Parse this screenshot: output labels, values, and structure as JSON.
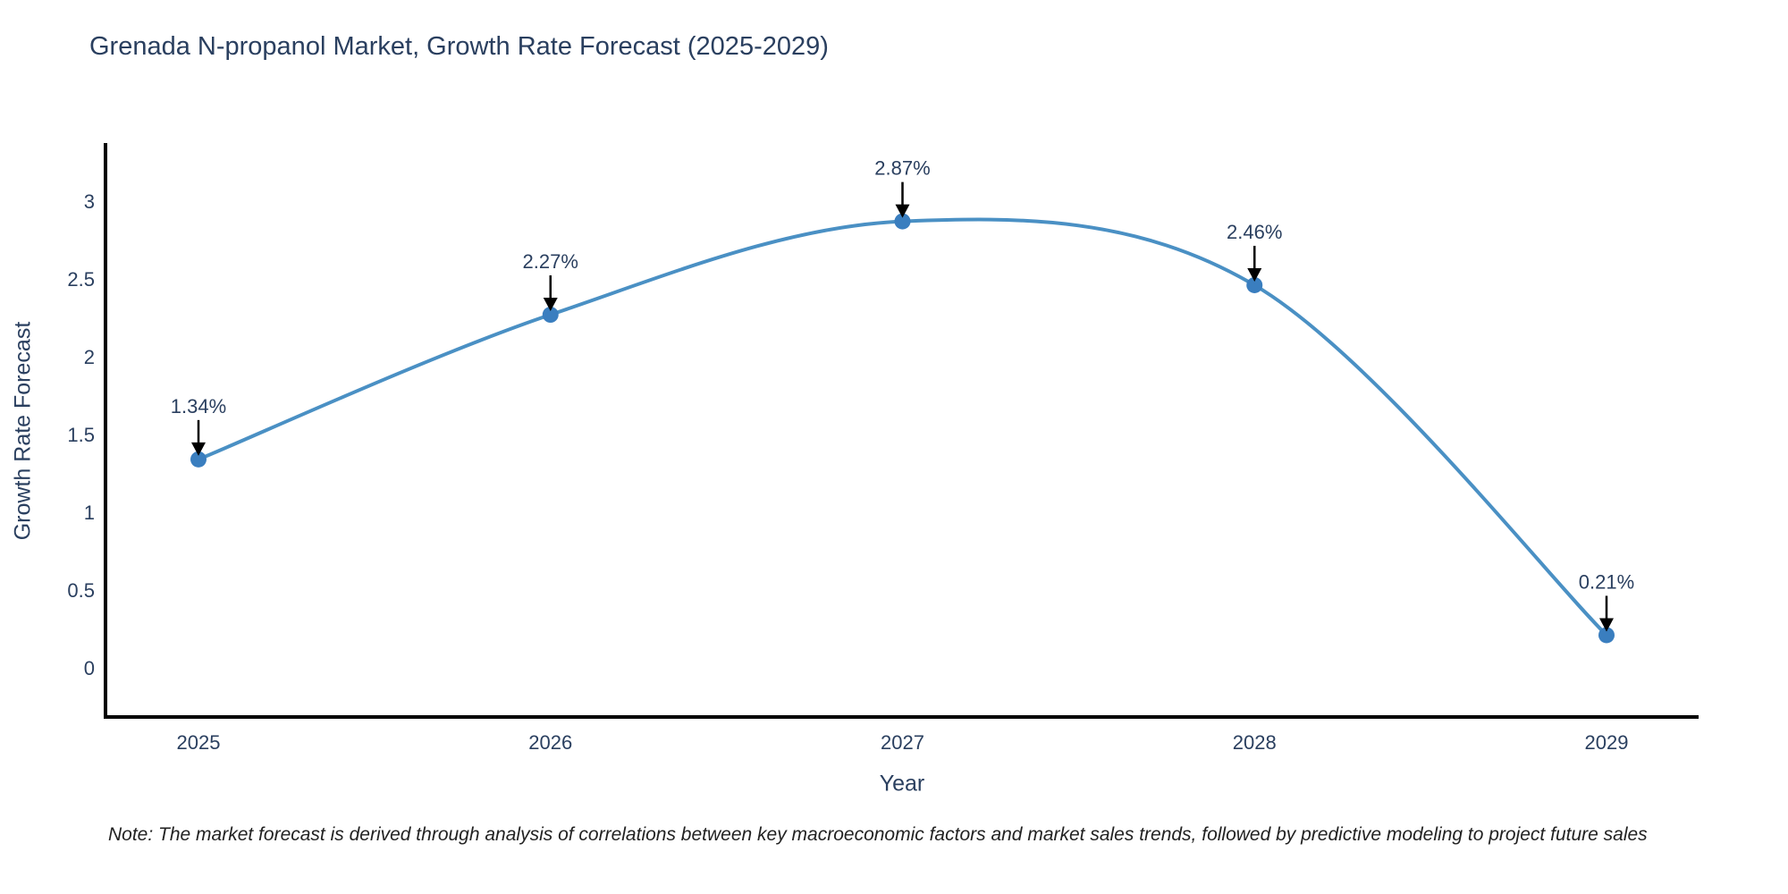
{
  "title": "Grenada N-propanol Market, Growth Rate Forecast (2025-2029)",
  "note": "Note: The market forecast is derived through analysis of correlations between key macroeconomic factors and market sales trends, followed by predictive modeling to project future sales",
  "chart_data": {
    "type": "line",
    "line_shape": "spline",
    "title": "Grenada N-propanol Market, Growth Rate Forecast (2025-2029)",
    "categories": [
      "2025",
      "2026",
      "2027",
      "2028",
      "2029"
    ],
    "values": [
      1.34,
      2.27,
      2.87,
      2.46,
      0.21
    ],
    "point_labels": [
      "1.34%",
      "2.27%",
      "2.87%",
      "2.46%",
      "0.21%"
    ],
    "xlabel": "Year",
    "ylabel": "Growth Rate Forecast",
    "yticks": [
      0,
      0.5,
      1,
      1.5,
      2,
      2.5,
      3
    ],
    "ylim": [
      -0.32,
      3.37
    ],
    "grid": false,
    "legend_position": "none",
    "colors": {
      "line": "#4a90c4",
      "marker": "#3a7ebf",
      "axis": "#000000",
      "tick_text": "#2a3f5f",
      "annotation_text": "#2a3f5f",
      "arrow": "#000000",
      "background": "#ffffff"
    }
  }
}
